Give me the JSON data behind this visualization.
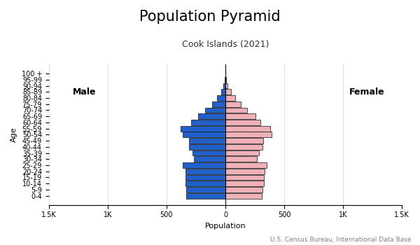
{
  "title": "Population Pyramid",
  "subtitle": "Cook Islands (2021)",
  "xlabel": "Population",
  "ylabel": "Age",
  "source": "U.S. Census Bureau, International Data Base",
  "age_groups": [
    "0-4",
    "5-9",
    "10-14",
    "15-19",
    "20-24",
    "25-29",
    "30-34",
    "35-39",
    "40-44",
    "45-49",
    "50-54",
    "55-59",
    "60-64",
    "65-69",
    "70-74",
    "75-79",
    "80-84",
    "85-89",
    "90-94",
    "95-99",
    "100 +"
  ],
  "male": [
    330,
    330,
    340,
    340,
    340,
    360,
    270,
    280,
    310,
    310,
    360,
    380,
    290,
    230,
    170,
    110,
    70,
    35,
    15,
    5,
    2
  ],
  "female": [
    310,
    315,
    325,
    330,
    335,
    350,
    265,
    285,
    315,
    320,
    390,
    380,
    295,
    255,
    185,
    130,
    85,
    45,
    20,
    7,
    3
  ],
  "male_color": "#2060c8",
  "female_color": "#f0b0b8",
  "bar_edge_color": "#111111",
  "bar_linewidth": 0.5,
  "xlim": 1500,
  "xticks": [
    -1500,
    -1000,
    -500,
    0,
    500,
    1000,
    1500
  ],
  "xticklabels": [
    "1.5K",
    "1K",
    "500",
    "0",
    "500",
    "1K",
    "1.5K"
  ],
  "title_fontsize": 15,
  "subtitle_fontsize": 9,
  "label_fontsize": 8,
  "tick_fontsize": 7,
  "source_fontsize": 6.5,
  "male_label": "Male",
  "female_label": "Female",
  "background_color": "#ffffff"
}
